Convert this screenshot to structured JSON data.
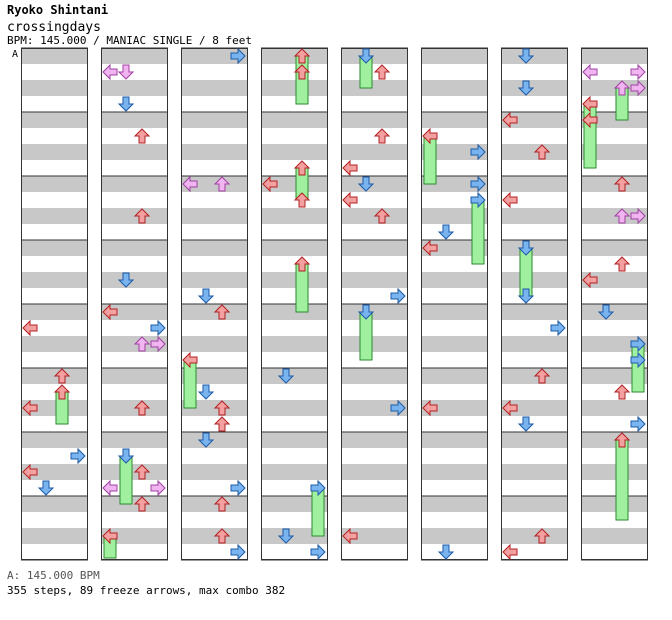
{
  "header": {
    "artist": "Ryoko Shintani",
    "song": "crossingdays",
    "bpm_line": "BPM: 145.000 / MANIAC SINGLE / 8 feet"
  },
  "chart": {
    "segment_label": "A",
    "columns": 8,
    "rows_per_column": 32,
    "lane_colors": {
      "left": "#f4a0a0",
      "down": "#7ab4ee",
      "up": "#f4a0a0",
      "right": "#7ab4ee",
      "jump": "#f0b4f0",
      "freeze": "#a0f0a0"
    }
  },
  "footer": {
    "bpm": "A: 145.000 BPM",
    "stats": "355 steps, 89 freeze arrows, max combo 382"
  }
}
